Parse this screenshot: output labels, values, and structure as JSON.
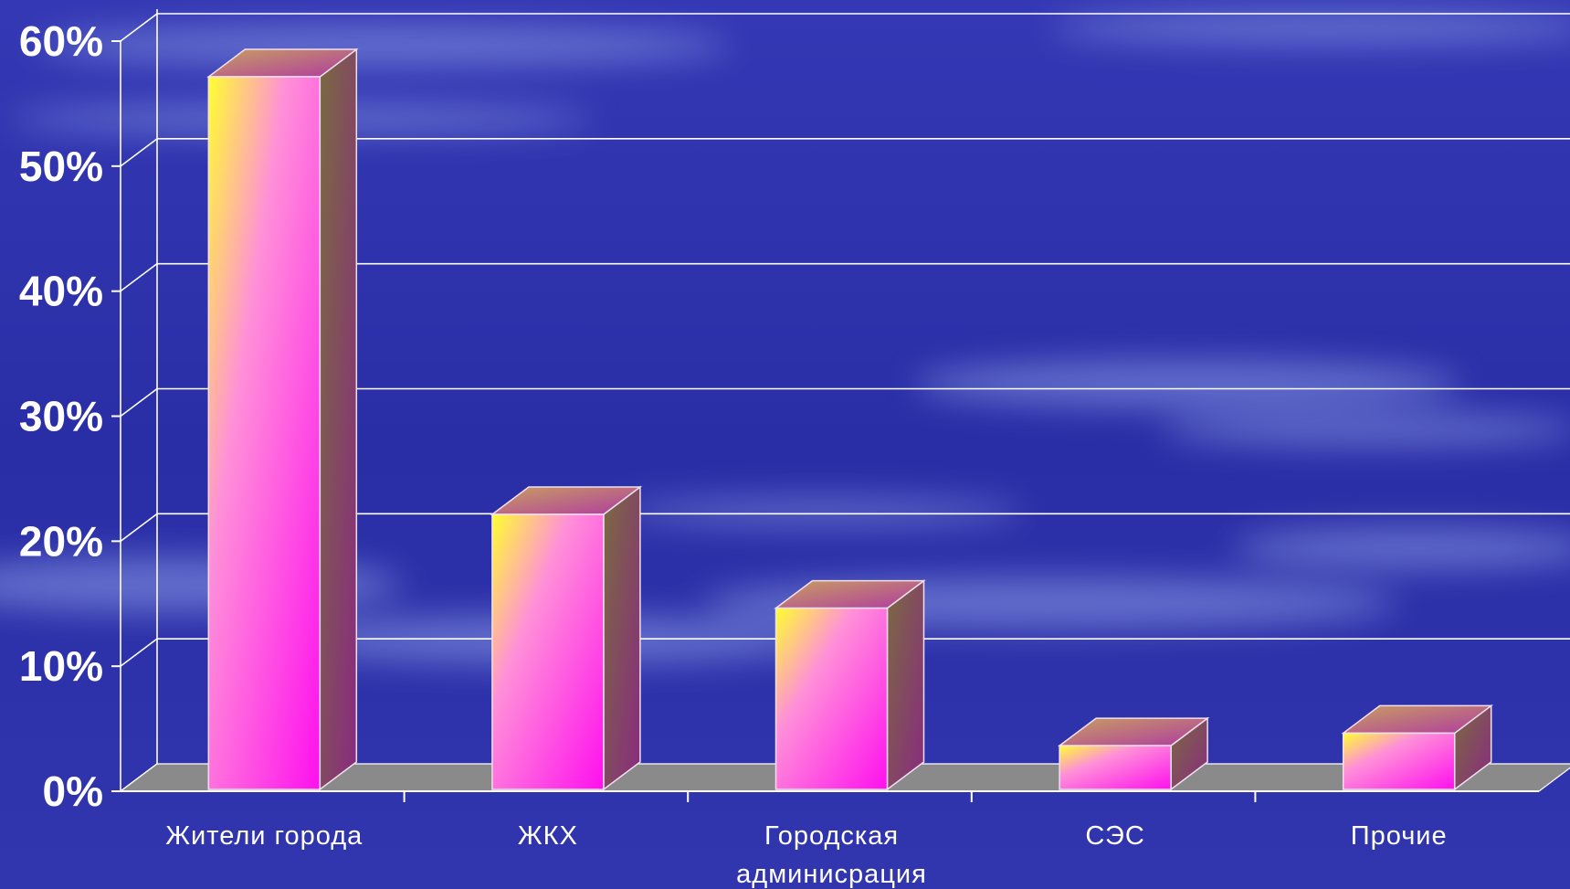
{
  "colors": {
    "background": "#2a2ea8",
    "grid": "#ffffff",
    "floor": "#8a8a8a",
    "bar_front_top": "#ffff20",
    "bar_front_bottom": "#ff22ee",
    "bar_side": "#8a3a80",
    "bar_top": "#b0a060"
  },
  "chart_data": {
    "type": "bar",
    "categories": [
      "Жители города",
      "ЖКХ",
      "Городская администрация",
      "СЭС",
      "Прочие"
    ],
    "category_lines": [
      [
        "Жители города"
      ],
      [
        "ЖКХ"
      ],
      [
        "Городская",
        "админисрация"
      ],
      [
        "СЭС"
      ],
      [
        "Прочие"
      ]
    ],
    "values": [
      57,
      22,
      14.5,
      3.5,
      4.5
    ],
    "ylim": [
      0,
      60
    ],
    "yticks": [
      0,
      10,
      20,
      30,
      40,
      50,
      60
    ],
    "ytick_labels": [
      "0%",
      "10%",
      "20%",
      "30%",
      "40%",
      "50%",
      "60%"
    ],
    "title": "",
    "xlabel": "",
    "ylabel": "",
    "grid": true,
    "legend": "none",
    "style": "3d-columns"
  }
}
